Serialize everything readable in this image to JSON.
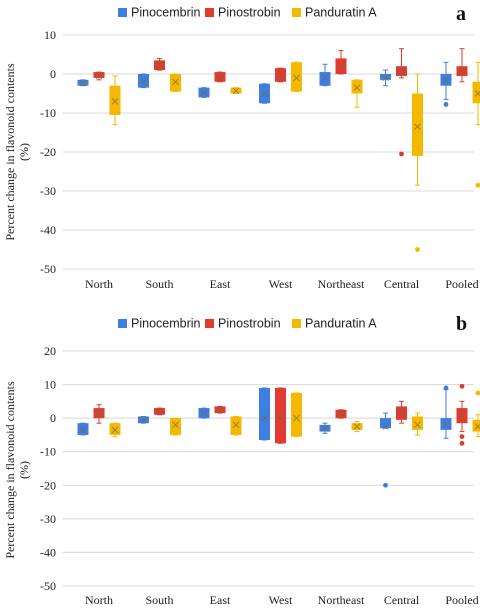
{
  "colors": {
    "Pinocembrin": "#3d7ee3",
    "Pinostrobin": "#df3b30",
    "Panduratin A": "#f5b800",
    "grid": "#d8d8d8"
  },
  "chart_data": [
    {
      "type": "box",
      "panel_label": "a",
      "ylabel": "Percent change in flavonoid contents (%)",
      "ylim": [
        -50,
        10
      ],
      "yticks": [
        10,
        0,
        -10,
        -20,
        -30,
        -40,
        -50
      ],
      "grid": true,
      "legend_position": "top",
      "categories": [
        "North",
        "South",
        "East",
        "West",
        "Northeast",
        "Central",
        "Pooled"
      ],
      "series": [
        {
          "name": "Pinocembrin",
          "boxes": [
            {
              "q1": -3,
              "q3": -1.5,
              "wlo": -3,
              "whi": -1.5,
              "mean": -2.3,
              "outliers": []
            },
            {
              "q1": -3.5,
              "q3": 0,
              "wlo": -3.5,
              "whi": 0,
              "mean": -2,
              "outliers": []
            },
            {
              "q1": -6,
              "q3": -3.5,
              "wlo": -6,
              "whi": -3.5,
              "mean": -4.8,
              "outliers": []
            },
            {
              "q1": -7.5,
              "q3": -2.5,
              "wlo": -7.5,
              "whi": -2.5,
              "mean": -5,
              "outliers": []
            },
            {
              "q1": -3,
              "q3": 0.5,
              "wlo": -3,
              "whi": 2.5,
              "mean": -1,
              "outliers": []
            },
            {
              "q1": -1.5,
              "q3": 0,
              "wlo": -3,
              "whi": 1,
              "mean": -1,
              "outliers": []
            },
            {
              "q1": -3,
              "q3": 0,
              "wlo": -6.5,
              "whi": 3,
              "mean": -1.5,
              "outliers": [
                -7.8
              ]
            }
          ]
        },
        {
          "name": "Pinostrobin",
          "boxes": [
            {
              "q1": -1,
              "q3": 0.5,
              "wlo": -1.5,
              "whi": 0.5,
              "mean": -0.5,
              "outliers": []
            },
            {
              "q1": 1,
              "q3": 3.5,
              "wlo": 1,
              "whi": 4,
              "mean": 2.5,
              "outliers": []
            },
            {
              "q1": -2,
              "q3": 0.5,
              "wlo": -2,
              "whi": 0.5,
              "mean": -1,
              "outliers": []
            },
            {
              "q1": -2,
              "q3": 1.5,
              "wlo": -2,
              "whi": 1.5,
              "mean": -0.5,
              "outliers": []
            },
            {
              "q1": 0,
              "q3": 4,
              "wlo": 0,
              "whi": 6,
              "mean": 2,
              "outliers": []
            },
            {
              "q1": -0.5,
              "q3": 2,
              "wlo": -1,
              "whi": 6.5,
              "mean": 0.5,
              "outliers": [
                -20.5
              ]
            },
            {
              "q1": -0.5,
              "q3": 2,
              "wlo": -2,
              "whi": 6.5,
              "mean": 0.5,
              "outliers": []
            }
          ]
        },
        {
          "name": "Panduratin A",
          "boxes": [
            {
              "q1": -10.5,
              "q3": -3,
              "wlo": -13,
              "whi": -0.5,
              "mean": -7,
              "outliers": []
            },
            {
              "q1": -4.5,
              "q3": 0,
              "wlo": -4.5,
              "whi": 0,
              "mean": -2,
              "outliers": []
            },
            {
              "q1": -5,
              "q3": -3.5,
              "wlo": -5,
              "whi": -3.5,
              "mean": -4.3,
              "outliers": []
            },
            {
              "q1": -4.5,
              "q3": 3,
              "wlo": -4.5,
              "whi": 3,
              "mean": -1,
              "outliers": []
            },
            {
              "q1": -5,
              "q3": -1.5,
              "wlo": -8.5,
              "whi": -1.5,
              "mean": -3.5,
              "outliers": []
            },
            {
              "q1": -21,
              "q3": -5,
              "wlo": -28.5,
              "whi": 0,
              "mean": -13.5,
              "outliers": [
                -45
              ]
            },
            {
              "q1": -7.5,
              "q3": -2,
              "wlo": -13,
              "whi": 3,
              "mean": -5,
              "outliers": [
                -28.5
              ]
            }
          ]
        }
      ]
    },
    {
      "type": "box",
      "panel_label": "b",
      "ylabel": "Percent change in flavonoid contents (%)",
      "ylim": [
        -50,
        20
      ],
      "yticks": [
        20,
        10,
        0,
        -10,
        -20,
        -30,
        -40,
        -50
      ],
      "grid": true,
      "legend_position": "top",
      "categories": [
        "North",
        "South",
        "East",
        "West",
        "Northeast",
        "Central",
        "Pooled"
      ],
      "series": [
        {
          "name": "Pinocembrin",
          "boxes": [
            {
              "q1": -5,
              "q3": -1.5,
              "wlo": -5,
              "whi": -1.5,
              "mean": -3.5,
              "outliers": []
            },
            {
              "q1": -1.5,
              "q3": 0.5,
              "wlo": -1.5,
              "whi": 0.5,
              "mean": -0.5,
              "outliers": []
            },
            {
              "q1": 0,
              "q3": 3,
              "wlo": 0,
              "whi": 3,
              "mean": 1.5,
              "outliers": []
            },
            {
              "q1": -6.5,
              "q3": 9,
              "wlo": -6.5,
              "whi": 9,
              "mean": 0,
              "outliers": []
            },
            {
              "q1": -4,
              "q3": -2,
              "wlo": -4.5,
              "whi": -1.5,
              "mean": -3,
              "outliers": []
            },
            {
              "q1": -3,
              "q3": 0,
              "wlo": -3,
              "whi": 1.5,
              "mean": -2.5,
              "outliers": [
                -20
              ]
            },
            {
              "q1": -3.5,
              "q3": 0,
              "wlo": -6,
              "whi": 8.5,
              "mean": -2,
              "outliers": [
                9
              ]
            }
          ]
        },
        {
          "name": "Pinostrobin",
          "boxes": [
            {
              "q1": 0,
              "q3": 3,
              "wlo": -1.5,
              "whi": 4,
              "mean": 1.5,
              "outliers": []
            },
            {
              "q1": 1,
              "q3": 3,
              "wlo": 1,
              "whi": 3,
              "mean": 2,
              "outliers": []
            },
            {
              "q1": 1.5,
              "q3": 3.5,
              "wlo": 1.5,
              "whi": 3.5,
              "mean": 2.5,
              "outliers": []
            },
            {
              "q1": -7.5,
              "q3": 9,
              "wlo": -7.5,
              "whi": 9,
              "mean": 0.5,
              "outliers": []
            },
            {
              "q1": 0,
              "q3": 2.5,
              "wlo": 0,
              "whi": 2.5,
              "mean": 1.5,
              "outliers": []
            },
            {
              "q1": -0.5,
              "q3": 3.5,
              "wlo": -1.5,
              "whi": 5,
              "mean": 1.5,
              "outliers": []
            },
            {
              "q1": -1.5,
              "q3": 3,
              "wlo": -4,
              "whi": 5,
              "mean": 0.5,
              "outliers": [
                -5.5,
                -7.5,
                9.5
              ]
            }
          ]
        },
        {
          "name": "Panduratin A",
          "boxes": [
            {
              "q1": -5,
              "q3": -1.5,
              "wlo": -5.5,
              "whi": -1.5,
              "mean": -3.5,
              "outliers": []
            },
            {
              "q1": -5,
              "q3": 0,
              "wlo": -5,
              "whi": 0,
              "mean": -2,
              "outliers": []
            },
            {
              "q1": -5,
              "q3": 0.5,
              "wlo": -5,
              "whi": 0.5,
              "mean": -2,
              "outliers": []
            },
            {
              "q1": -5.5,
              "q3": 7.5,
              "wlo": -5.5,
              "whi": 7.5,
              "mean": 0,
              "outliers": []
            },
            {
              "q1": -3.5,
              "q3": -1.5,
              "wlo": -4,
              "whi": -1,
              "mean": -2.5,
              "outliers": []
            },
            {
              "q1": -3.5,
              "q3": 0.5,
              "wlo": -5,
              "whi": 1.5,
              "mean": -2,
              "outliers": []
            },
            {
              "q1": -4,
              "q3": -0.5,
              "wlo": -5.5,
              "whi": 1,
              "mean": -2.5,
              "outliers": [
                7.5
              ]
            }
          ]
        }
      ]
    }
  ]
}
